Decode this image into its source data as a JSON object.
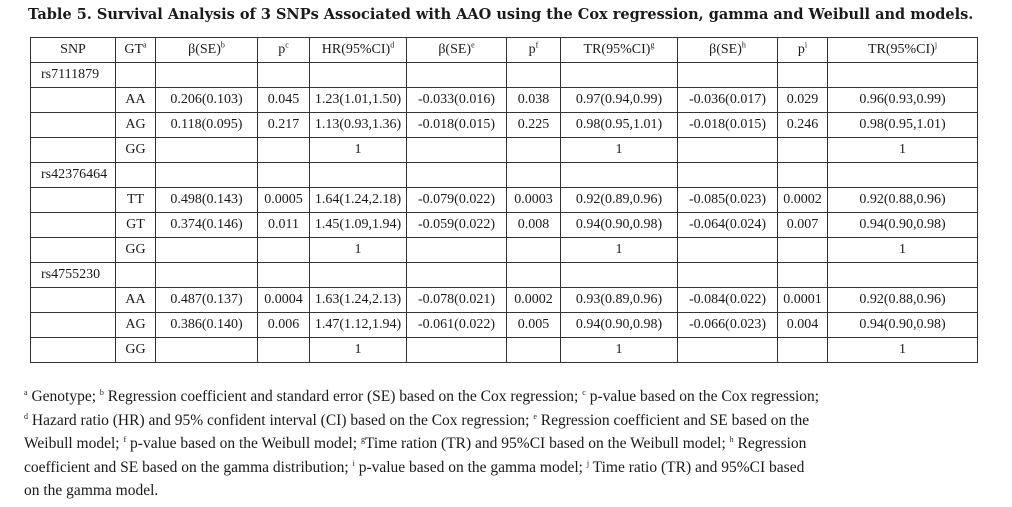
{
  "title": "Table 5.  Survival Analysis of 3 SNPs Associated with AAO using the Cox regression, gamma and Weibull and models.",
  "table": {
    "headers": [
      {
        "text": "SNP",
        "sup": ""
      },
      {
        "text": "GT",
        "sup": "a"
      },
      {
        "text": "β(SE)",
        "sup": "b"
      },
      {
        "text": "p",
        "sup": "c"
      },
      {
        "text": "HR(95%CI)",
        "sup": "d"
      },
      {
        "text": "β(SE)",
        "sup": "e"
      },
      {
        "text": "p",
        "sup": "f"
      },
      {
        "text": "TR(95%CI)",
        "sup": "g"
      },
      {
        "text": "β(SE)",
        "sup": "h"
      },
      {
        "text": "p",
        "sup": "i"
      },
      {
        "text": "TR(95%CI)",
        "sup": "j"
      }
    ],
    "groups": [
      {
        "snp": "rs7111879",
        "rows": [
          {
            "gt": "AA",
            "cells": [
              "0.206(0.103)",
              "0.045",
              "1.23(1.01,1.50)",
              "-0.033(0.016)",
              "0.038",
              "0.97(0.94,0.99)",
              "-0.036(0.017)",
              "0.029",
              "0.96(0.93,0.99)"
            ]
          },
          {
            "gt": "AG",
            "cells": [
              "0.118(0.095)",
              "0.217",
              "1.13(0.93,1.36)",
              "-0.018(0.015)",
              "0.225",
              "0.98(0.95,1.01)",
              "-0.018(0.015)",
              "0.246",
              "0.98(0.95,1.01)"
            ]
          },
          {
            "gt": "GG",
            "cells": [
              "",
              "",
              "1",
              "",
              "",
              "1",
              "",
              "",
              "1"
            ]
          }
        ]
      },
      {
        "snp": "rs42376464",
        "rows": [
          {
            "gt": "TT",
            "cells": [
              "0.498(0.143)",
              "0.0005",
              "1.64(1.24,2.18)",
              "-0.079(0.022)",
              "0.0003",
              "0.92(0.89,0.96)",
              "-0.085(0.023)",
              "0.0002",
              "0.92(0.88,0.96)"
            ]
          },
          {
            "gt": "GT",
            "cells": [
              "0.374(0.146)",
              "0.011",
              "1.45(1.09,1.94)",
              "-0.059(0.022)",
              "0.008",
              "0.94(0.90,0.98)",
              "-0.064(0.024)",
              "0.007",
              "0.94(0.90,0.98)"
            ]
          },
          {
            "gt": "GG",
            "cells": [
              "",
              "",
              "1",
              "",
              "",
              "1",
              "",
              "",
              "1"
            ]
          }
        ]
      },
      {
        "snp": "rs4755230",
        "rows": [
          {
            "gt": "AA",
            "cells": [
              "0.487(0.137)",
              "0.0004",
              "1.63(1.24,2.13)",
              "-0.078(0.021)",
              "0.0002",
              "0.93(0.89,0.96)",
              "-0.084(0.022)",
              "0.0001",
              "0.92(0.88,0.96)"
            ]
          },
          {
            "gt": "AG",
            "cells": [
              "0.386(0.140)",
              "0.006",
              "1.47(1.12,1.94)",
              "-0.061(0.022)",
              "0.005",
              "0.94(0.90,0.98)",
              "-0.066(0.023)",
              "0.004",
              "0.94(0.90,0.98)"
            ]
          },
          {
            "gt": "GG",
            "cells": [
              "",
              "",
              "1",
              "",
              "",
              "1",
              "",
              "",
              "1"
            ]
          }
        ]
      }
    ]
  },
  "footnotes": [
    [
      {
        "sup": "a",
        "text": " Genotype; "
      },
      {
        "sup": "b",
        "text": " Regression coefficient and standard error (SE) based on the Cox regression; "
      },
      {
        "sup": "c",
        "text": " p-value based on the Cox regression;"
      }
    ],
    [
      {
        "sup": "d",
        "text": " Hazard ratio (HR) and 95% confident interval (CI) based on the Cox regression; "
      },
      {
        "sup": "e",
        "text": " Regression coefficient and SE based on the"
      }
    ],
    [
      {
        "sup": "",
        "text": "Weibull model; "
      },
      {
        "sup": "f",
        "text": " p-value based on the Weibull model; "
      },
      {
        "sup": "g",
        "text": "Time ration (TR) and 95%CI based on the Weibull model; "
      },
      {
        "sup": "h",
        "text": " Regression"
      }
    ],
    [
      {
        "sup": "",
        "text": "coefficient and SE based on the gamma distribution; "
      },
      {
        "sup": "i",
        "text": " p-value based on the gamma model; "
      },
      {
        "sup": "j",
        "text": " Time ratio (TR) and 95%CI based"
      }
    ],
    [
      {
        "sup": "",
        "text": "on the gamma model."
      }
    ]
  ]
}
